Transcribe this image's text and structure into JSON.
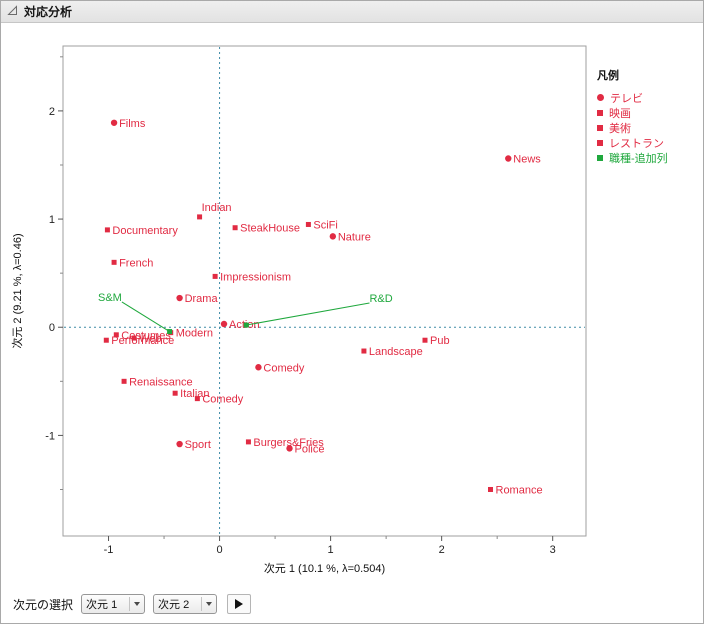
{
  "window": {
    "title": "対応分析"
  },
  "legend": {
    "title": "凡例",
    "items": [
      {
        "label": "テレビ",
        "marker": "circle",
        "color": "#e12b43"
      },
      {
        "label": "映画",
        "marker": "square",
        "color": "#e12b43"
      },
      {
        "label": "美術",
        "marker": "square",
        "color": "#e12b43"
      },
      {
        "label": "レストラン",
        "marker": "square",
        "color": "#e12b43"
      },
      {
        "label": "職種-追加列",
        "marker": "square",
        "color": "#1fa83d"
      }
    ]
  },
  "controls": {
    "label": "次元の選択",
    "dim1_value": "次元 1",
    "dim2_value": "次元 2"
  },
  "chart_data": {
    "type": "scatter",
    "title": "対応分析",
    "xlabel": "次元 1  (10.1 %, λ=0.504)",
    "ylabel": "次元 2  (9.21 %, λ=0.46)",
    "xlim": [
      -1.41,
      3.3
    ],
    "ylim": [
      -1.93,
      2.6
    ],
    "x_ticks": [
      -1,
      0,
      1,
      2,
      3
    ],
    "y_ticks": [
      -1,
      0,
      1,
      2
    ],
    "grid": false,
    "legend_position": "right",
    "reference_lines": {
      "x": 0,
      "y": 0,
      "style": "dotted",
      "color": "#3f8ba6"
    },
    "series": [
      {
        "name": "テレビ",
        "marker": "circle",
        "color": "#e12b43",
        "points": [
          {
            "label": "Films",
            "x": -0.95,
            "y": 1.89
          },
          {
            "label": "News",
            "x": 2.6,
            "y": 1.56
          },
          {
            "label": "Nature",
            "x": 1.02,
            "y": 0.84
          },
          {
            "label": "Drama",
            "x": -0.36,
            "y": 0.27
          },
          {
            "label": "Action",
            "x": 0.04,
            "y": 0.03
          },
          {
            "label": "Comedy",
            "x": 0.35,
            "y": -0.37
          },
          {
            "label": "Sport",
            "x": -0.36,
            "y": -1.08
          },
          {
            "label": "Police",
            "x": 0.63,
            "y": -1.12
          }
        ]
      },
      {
        "name": "映画",
        "marker": "square",
        "color": "#e12b43",
        "points": [
          {
            "label": "Documentary",
            "x": -1.01,
            "y": 0.9
          },
          {
            "label": "SciFi",
            "x": 0.8,
            "y": 0.95
          },
          {
            "label": "Comedy",
            "x": -0.2,
            "y": -0.66
          },
          {
            "label": "Romance",
            "x": 2.44,
            "y": -1.5
          }
        ]
      },
      {
        "name": "美術",
        "marker": "square",
        "color": "#e12b43",
        "points": [
          {
            "label": "Impressionism",
            "x": -0.04,
            "y": 0.47
          },
          {
            "label": "Modern",
            "x": -0.44,
            "y": -0.05
          },
          {
            "label": "Costumes",
            "x": -0.93,
            "y": -0.07
          },
          {
            "label": "Performance",
            "x": -1.02,
            "y": -0.12
          },
          {
            "label": "Web",
            "x": -0.77,
            "y": -0.1
          },
          {
            "label": "Landscape",
            "x": 1.3,
            "y": -0.22
          },
          {
            "label": "Renaissance",
            "x": -0.86,
            "y": -0.5
          }
        ]
      },
      {
        "name": "レストラン",
        "marker": "square",
        "color": "#e12b43",
        "points": [
          {
            "label": "Indian",
            "x": -0.18,
            "y": 1.02,
            "label_pos": "above"
          },
          {
            "label": "SteakHouse",
            "x": 0.14,
            "y": 0.92
          },
          {
            "label": "French",
            "x": -0.95,
            "y": 0.6
          },
          {
            "label": "Pub",
            "x": 1.85,
            "y": -0.12
          },
          {
            "label": "Italian",
            "x": -0.4,
            "y": -0.61
          },
          {
            "label": "Burgers&Fries",
            "x": 0.26,
            "y": -1.06
          }
        ]
      },
      {
        "name": "職種-追加列",
        "marker": "square",
        "color": "#1fa83d",
        "points": [
          {
            "label": "S&M",
            "x": -0.45,
            "y": -0.04,
            "label_x": -0.88,
            "label_y": 0.28,
            "label_anchor": "end"
          },
          {
            "label": "R&D",
            "x": 0.24,
            "y": 0.02,
            "label_x": 1.35,
            "label_y": 0.27,
            "label_anchor": "start"
          }
        ]
      }
    ]
  }
}
